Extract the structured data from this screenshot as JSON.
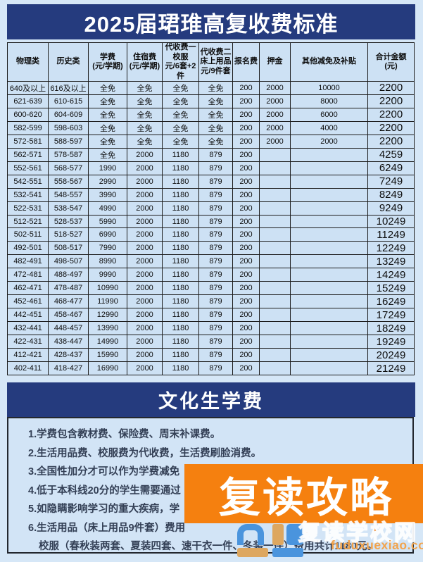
{
  "title": "2025届珺琟高复收费标准",
  "colors": {
    "navy": "#253b7e",
    "page_background": "#d6e7f7",
    "table_background": "#cde1f4",
    "banner_orange": "#f5800f",
    "watermark_orange": "#f2a44d",
    "text_dark": "#0d0d0d"
  },
  "table": {
    "columns": [
      {
        "lines": [
          "物理类"
        ]
      },
      {
        "lines": [
          "历史类"
        ]
      },
      {
        "lines": [
          "学费",
          "(元/学期)"
        ]
      },
      {
        "lines": [
          "住宿费",
          "(元/学期)"
        ]
      },
      {
        "lines": [
          "代收费一",
          "校服",
          "元/6套+2件"
        ]
      },
      {
        "lines": [
          "代收费二",
          "床上用品",
          "元/9件套"
        ]
      },
      {
        "lines": [
          "报名费"
        ]
      },
      {
        "lines": [
          "押金"
        ]
      },
      {
        "lines": [
          "其他减免及补贴"
        ]
      },
      {
        "lines": [
          "合计金额",
          "(元)"
        ]
      }
    ],
    "rows": [
      [
        "640及以上",
        "616及以上",
        "全免",
        "全免",
        "全免",
        "全免",
        "200",
        "2000",
        "10000",
        "2200"
      ],
      [
        "621-639",
        "610-615",
        "全免",
        "全免",
        "全免",
        "全免",
        "200",
        "2000",
        "8000",
        "2200"
      ],
      [
        "600-620",
        "604-609",
        "全免",
        "全免",
        "全免",
        "全免",
        "200",
        "2000",
        "6000",
        "2200"
      ],
      [
        "582-599",
        "598-603",
        "全免",
        "全免",
        "全免",
        "全免",
        "200",
        "2000",
        "4000",
        "2200"
      ],
      [
        "572-581",
        "588-597",
        "全免",
        "全免",
        "全免",
        "全免",
        "200",
        "2000",
        "2000",
        "2200"
      ],
      [
        "562-571",
        "578-587",
        "全免",
        "2000",
        "1180",
        "879",
        "200",
        "",
        "",
        "4259"
      ],
      [
        "552-561",
        "568-577",
        "1990",
        "2000",
        "1180",
        "879",
        "200",
        "",
        "",
        "6249"
      ],
      [
        "542-551",
        "558-567",
        "2990",
        "2000",
        "1180",
        "879",
        "200",
        "",
        "",
        "7249"
      ],
      [
        "532-541",
        "548-557",
        "3990",
        "2000",
        "1180",
        "879",
        "200",
        "",
        "",
        "8249"
      ],
      [
        "522-531",
        "538-547",
        "4990",
        "2000",
        "1180",
        "879",
        "200",
        "",
        "",
        "9249"
      ],
      [
        "512-521",
        "528-537",
        "5990",
        "2000",
        "1180",
        "879",
        "200",
        "",
        "",
        "10249"
      ],
      [
        "502-511",
        "518-527",
        "6990",
        "2000",
        "1180",
        "879",
        "200",
        "",
        "",
        "11249"
      ],
      [
        "492-501",
        "508-517",
        "7990",
        "2000",
        "1180",
        "879",
        "200",
        "",
        "",
        "12249"
      ],
      [
        "482-491",
        "498-507",
        "8990",
        "2000",
        "1180",
        "879",
        "200",
        "",
        "",
        "13249"
      ],
      [
        "472-481",
        "488-497",
        "9990",
        "2000",
        "1180",
        "879",
        "200",
        "",
        "",
        "14249"
      ],
      [
        "462-471",
        "478-487",
        "10990",
        "2000",
        "1180",
        "879",
        "200",
        "",
        "",
        "15249"
      ],
      [
        "452-461",
        "468-477",
        "11990",
        "2000",
        "1180",
        "879",
        "200",
        "",
        "",
        "16249"
      ],
      [
        "442-451",
        "458-467",
        "12990",
        "2000",
        "1180",
        "879",
        "200",
        "",
        "",
        "17249"
      ],
      [
        "432-441",
        "448-457",
        "13990",
        "2000",
        "1180",
        "879",
        "200",
        "",
        "",
        "18249"
      ],
      [
        "422-431",
        "438-447",
        "14990",
        "2000",
        "1180",
        "879",
        "200",
        "",
        "",
        "19249"
      ],
      [
        "412-421",
        "428-437",
        "15990",
        "2000",
        "1180",
        "879",
        "200",
        "",
        "",
        "20249"
      ],
      [
        "402-411",
        "418-427",
        "16990",
        "2000",
        "1180",
        "879",
        "200",
        "",
        "",
        "21249"
      ]
    ]
  },
  "section": {
    "title": "文化生学费",
    "notes": [
      "1.学费包含教材费、保险费、周末补课费。",
      "2.生活用品费、校服费为代收费，生活费刷脸消费。",
      "3.全国性加分才可以作为学费减免",
      "4.低于本科线20分的学生需要通过",
      "5.如隐瞒影响学习的重大疾病，学",
      "6.生活用品（床上用品9件套）费用",
      "校服（春秋装两套、夏装四套、速干衣一件、冬装一件）费用共计1180元。"
    ]
  },
  "banner": {
    "text": "复读攻略"
  },
  "watermark": {
    "site_name": "复读学校网",
    "url": "fuduxuexiao.com"
  }
}
